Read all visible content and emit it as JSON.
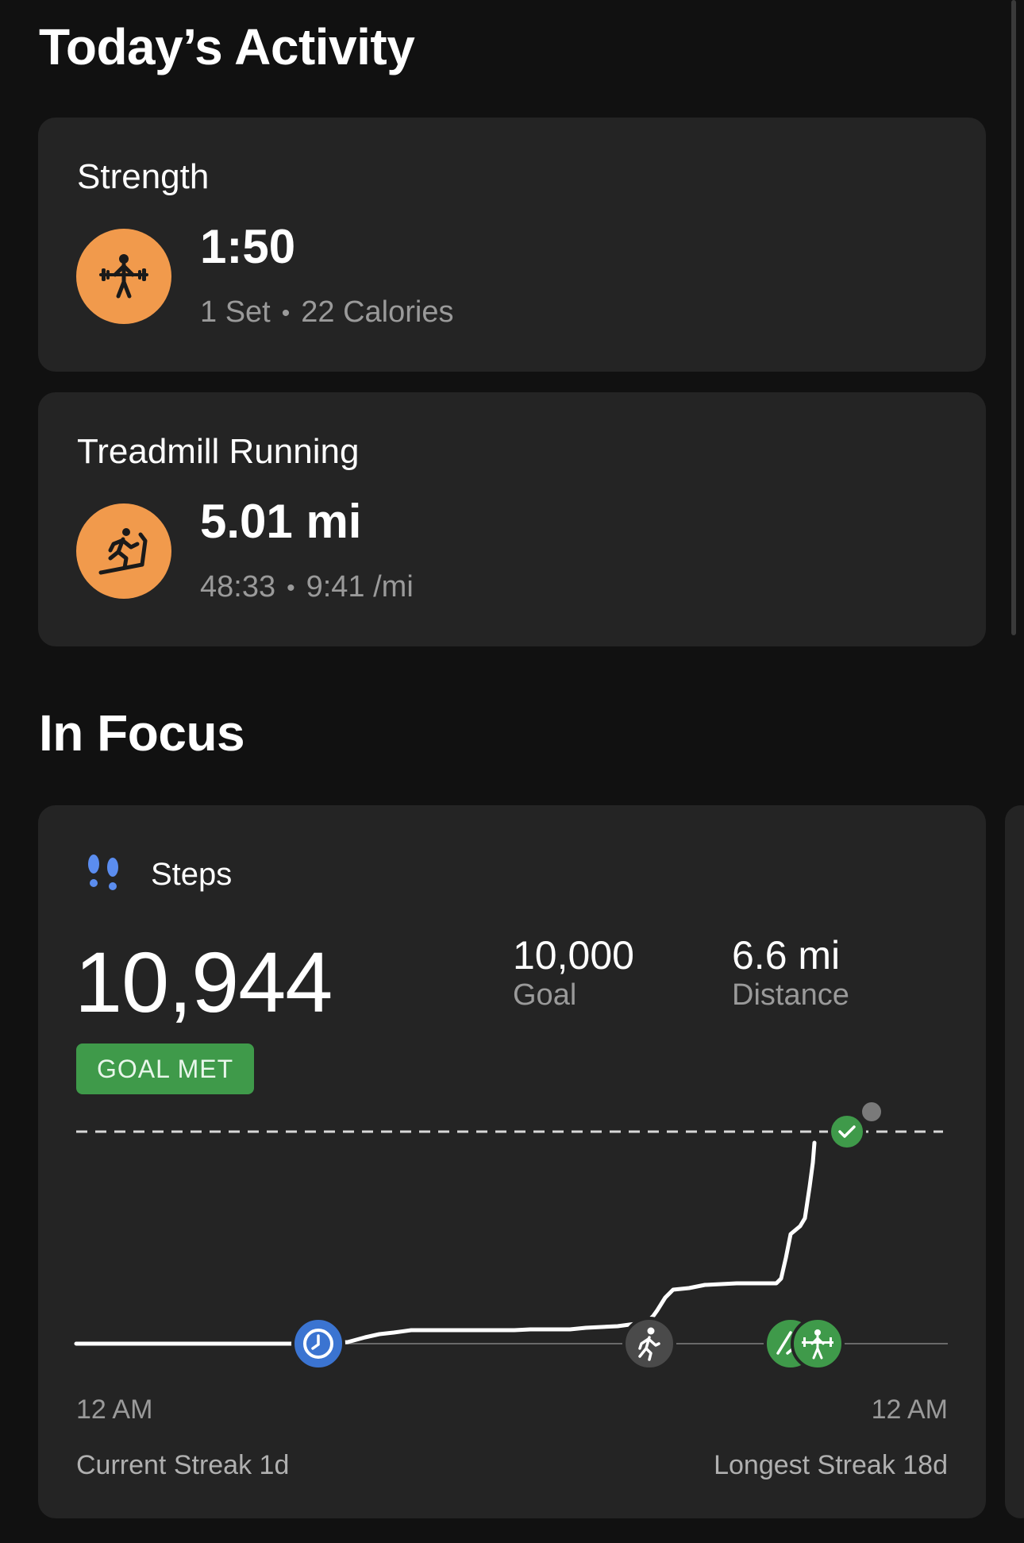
{
  "activity": {
    "title": "Today’s Activity",
    "items": [
      {
        "name": "Strength",
        "icon": "strength-training-icon",
        "value": "1:50",
        "detail_1": "1 Set",
        "detail_2": "22 Calories"
      },
      {
        "name": "Treadmill Running",
        "icon": "treadmill-running-icon",
        "value": "5.01 mi",
        "detail_1": "48:33",
        "detail_2": "9:41 /mi"
      }
    ]
  },
  "focus": {
    "title": "In Focus",
    "steps": {
      "label": "Steps",
      "icon": "footprints-icon",
      "count": "10,944",
      "goal_value": "10,000",
      "goal_label": "Goal",
      "distance_value": "6.6 mi",
      "distance_label": "Distance",
      "badge": "GOAL MET",
      "axis_start": "12 AM",
      "axis_end": "12 AM",
      "current_streak": "Current Streak 1d",
      "longest_streak": "Longest Streak 18d",
      "markers": [
        "sleep-clock-icon",
        "walking-icon",
        "running-icon",
        "strength-training-icon",
        "goal-check-icon"
      ]
    }
  },
  "colors": {
    "background": "#111111",
    "card": "#242424",
    "activity_orange": "#f19a4c",
    "goal_green": "#3f9a4a",
    "sleep_blue": "#3b74d1",
    "secondary_text": "#9a9a9a"
  }
}
